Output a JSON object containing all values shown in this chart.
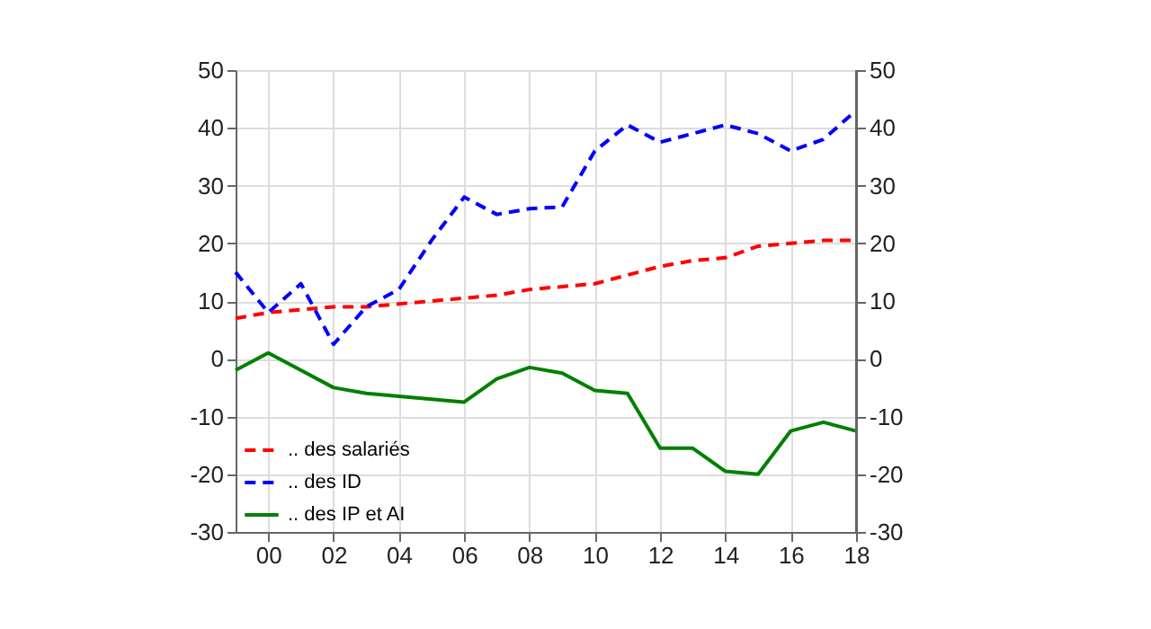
{
  "chart_data": {
    "type": "line",
    "x": [
      1999,
      2000,
      2001,
      2002,
      2003,
      2004,
      2005,
      2006,
      2007,
      2008,
      2009,
      2010,
      2011,
      2012,
      2013,
      2014,
      2015,
      2016,
      2017,
      2018
    ],
    "series": [
      {
        "name": ".. des salariés",
        "color": "#ff0000",
        "line_style": "dashed",
        "values": [
          7,
          8,
          8.5,
          9,
          9,
          9.5,
          10,
          10.5,
          11,
          12,
          12.5,
          13,
          14.5,
          16,
          17,
          17.5,
          19.5,
          20,
          20.5,
          20.5
        ]
      },
      {
        "name": ".. des ID",
        "color": "#0000ff",
        "line_style": "dashed",
        "values": [
          15,
          8,
          13,
          2.5,
          9,
          12,
          20.5,
          28,
          25,
          26,
          26.3,
          36,
          40.5,
          37.5,
          39,
          40.5,
          39,
          36,
          38,
          43
        ]
      },
      {
        "name": ".. des IP et AI",
        "color": "#008000",
        "line_style": "solid",
        "values": [
          -2,
          1,
          -2,
          -5,
          -6,
          -6.5,
          -7,
          -7.5,
          -3.5,
          -1.5,
          -2.5,
          -5.5,
          -6,
          -15.5,
          -15.5,
          -19.5,
          -20,
          -12.5,
          -11,
          -12.5
        ]
      }
    ],
    "xlim": [
      1999,
      2018
    ],
    "xticks": [
      {
        "value": 2000,
        "label": "00"
      },
      {
        "value": 2002,
        "label": "02"
      },
      {
        "value": 2004,
        "label": "04"
      },
      {
        "value": 2006,
        "label": "06"
      },
      {
        "value": 2008,
        "label": "08"
      },
      {
        "value": 2010,
        "label": "10"
      },
      {
        "value": 2012,
        "label": "12"
      },
      {
        "value": 2014,
        "label": "14"
      },
      {
        "value": 2016,
        "label": "16"
      },
      {
        "value": 2018,
        "label": "18"
      }
    ],
    "ylim": [
      -30,
      50
    ],
    "yticks": [
      -30,
      -20,
      -10,
      0,
      10,
      20,
      30,
      40,
      50
    ],
    "y2lim": [
      -30,
      50
    ],
    "y2ticks": [
      -30,
      -20,
      -10,
      0,
      10,
      20,
      30,
      40,
      50
    ],
    "grid": true,
    "legend": "bottom left"
  }
}
